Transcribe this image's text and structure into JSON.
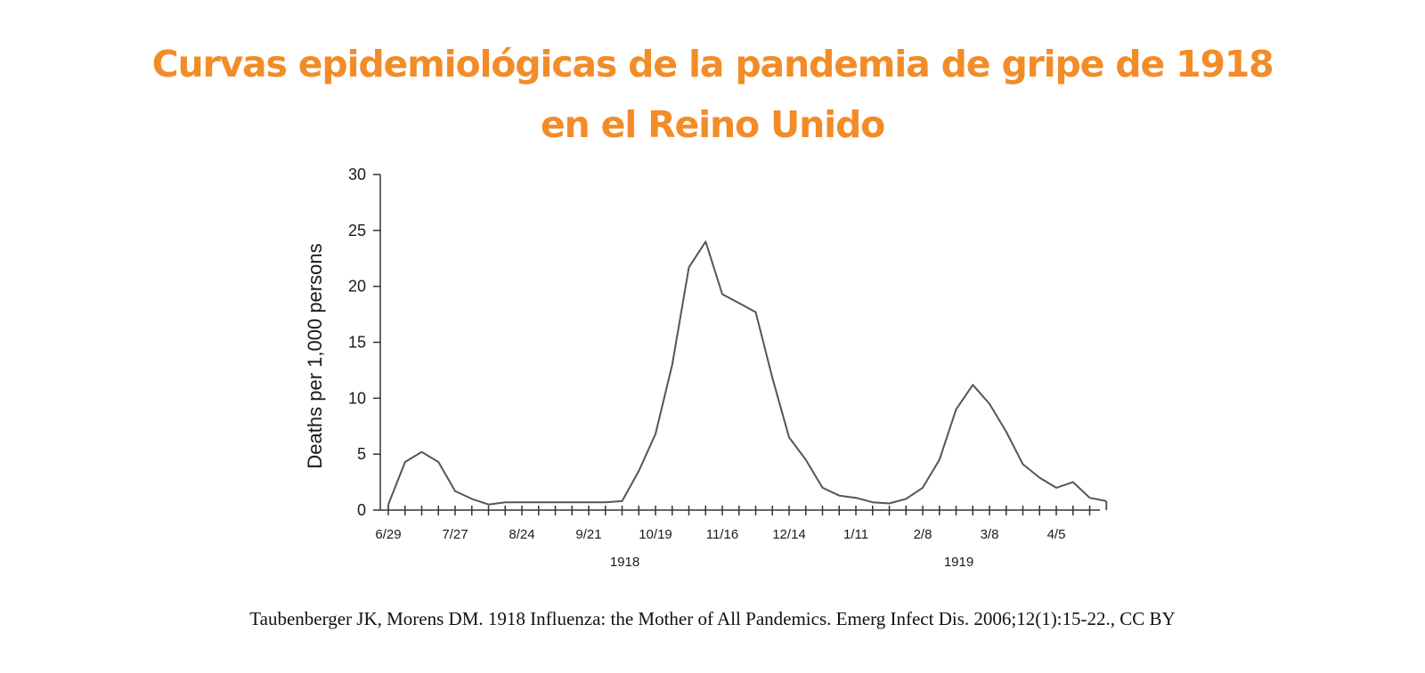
{
  "title": {
    "line1": "Curvas epidemiológicas de la pandemia de gripe de 1918",
    "line2": "en el Reino Unido"
  },
  "citation": "Taubenberger JK, Morens DM. 1918 Influenza: the Mother of All Pandemics. Emerg Infect Dis. 2006;12(1):15-22., CC BY",
  "colors": {
    "title": "#f28c28",
    "line": "#555555",
    "axis": "#333333"
  },
  "chart_data": {
    "type": "line",
    "title": "",
    "xlabel": "",
    "ylabel": "Deaths per 1,000 persons",
    "ylim": [
      0,
      30
    ],
    "yticks": [
      0,
      5,
      10,
      15,
      20,
      25,
      30
    ],
    "x_tick_labels": [
      {
        "week": 0,
        "label": "6/29"
      },
      {
        "week": 4,
        "label": "7/27"
      },
      {
        "week": 8,
        "label": "8/24"
      },
      {
        "week": 12,
        "label": "9/21"
      },
      {
        "week": 16,
        "label": "10/19"
      },
      {
        "week": 20,
        "label": "11/16"
      },
      {
        "week": 24,
        "label": "12/14"
      },
      {
        "week": 28,
        "label": "1/11"
      },
      {
        "week": 32,
        "label": "2/8"
      },
      {
        "week": 36,
        "label": "3/8"
      },
      {
        "week": 40,
        "label": "4/5"
      }
    ],
    "year_labels": [
      {
        "week": 14,
        "label": "1918"
      },
      {
        "week": 34,
        "label": "1919"
      }
    ],
    "weeks": [
      0,
      1,
      2,
      3,
      4,
      5,
      6,
      7,
      8,
      9,
      10,
      11,
      12,
      13,
      14,
      15,
      16,
      17,
      18,
      19,
      20,
      21,
      22,
      23,
      24,
      25,
      26,
      27,
      28,
      29,
      30,
      31,
      32,
      33,
      34,
      35,
      36,
      37,
      38,
      39,
      40,
      41,
      42,
      43
    ],
    "values": [
      0.5,
      4.3,
      5.2,
      4.3,
      1.7,
      1.0,
      0.5,
      0.7,
      0.7,
      0.7,
      0.7,
      0.7,
      0.7,
      0.7,
      0.8,
      3.5,
      6.8,
      13,
      21.7,
      24,
      19.3,
      18.5,
      17.7,
      11.8,
      6.5,
      4.5,
      2.0,
      1.3,
      1.1,
      0.7,
      0.6,
      1.0,
      2.0,
      4.5,
      9.0,
      11.2,
      9.5,
      7.0,
      4.1,
      2.9,
      2.0,
      2.5,
      1.1,
      0.8
    ],
    "grid": false,
    "legend": "none"
  }
}
